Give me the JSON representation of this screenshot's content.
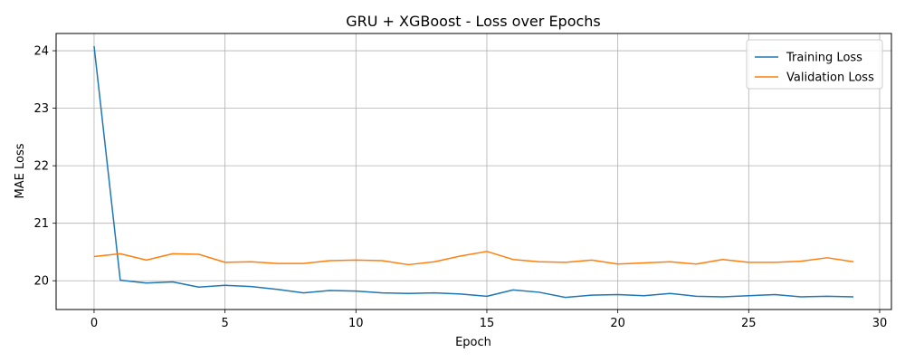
{
  "chart_data": {
    "type": "line",
    "title": "GRU + XGBoost - Loss over Epochs",
    "xlabel": "Epoch",
    "ylabel": "MAE Loss",
    "xlim": [
      -1.45,
      30.45
    ],
    "ylim": [
      19.5,
      24.3
    ],
    "xticks": [
      0,
      5,
      10,
      15,
      20,
      25,
      30
    ],
    "yticks": [
      20,
      21,
      22,
      23,
      24
    ],
    "grid": true,
    "legend_position": "top-right",
    "x": [
      0,
      1,
      2,
      3,
      4,
      5,
      6,
      7,
      8,
      9,
      10,
      11,
      12,
      13,
      14,
      15,
      16,
      17,
      18,
      19,
      20,
      21,
      22,
      23,
      24,
      25,
      26,
      27,
      28,
      29
    ],
    "series": [
      {
        "name": "Training Loss",
        "color": "#1f77b4",
        "values": [
          24.08,
          20.01,
          19.96,
          19.98,
          19.89,
          19.92,
          19.9,
          19.85,
          19.79,
          19.83,
          19.82,
          19.79,
          19.78,
          19.79,
          19.77,
          19.73,
          19.84,
          19.8,
          19.71,
          19.75,
          19.76,
          19.74,
          19.78,
          19.73,
          19.72,
          19.74,
          19.76,
          19.72,
          19.73,
          19.72
        ]
      },
      {
        "name": "Validation Loss",
        "color": "#ff7f0e",
        "values": [
          20.42,
          20.47,
          20.36,
          20.47,
          20.46,
          20.32,
          20.33,
          20.3,
          20.3,
          20.35,
          20.36,
          20.35,
          20.28,
          20.33,
          20.43,
          20.51,
          20.37,
          20.33,
          20.32,
          20.36,
          20.29,
          20.31,
          20.33,
          20.29,
          20.37,
          20.32,
          20.32,
          20.34,
          20.4,
          20.33
        ]
      }
    ]
  }
}
